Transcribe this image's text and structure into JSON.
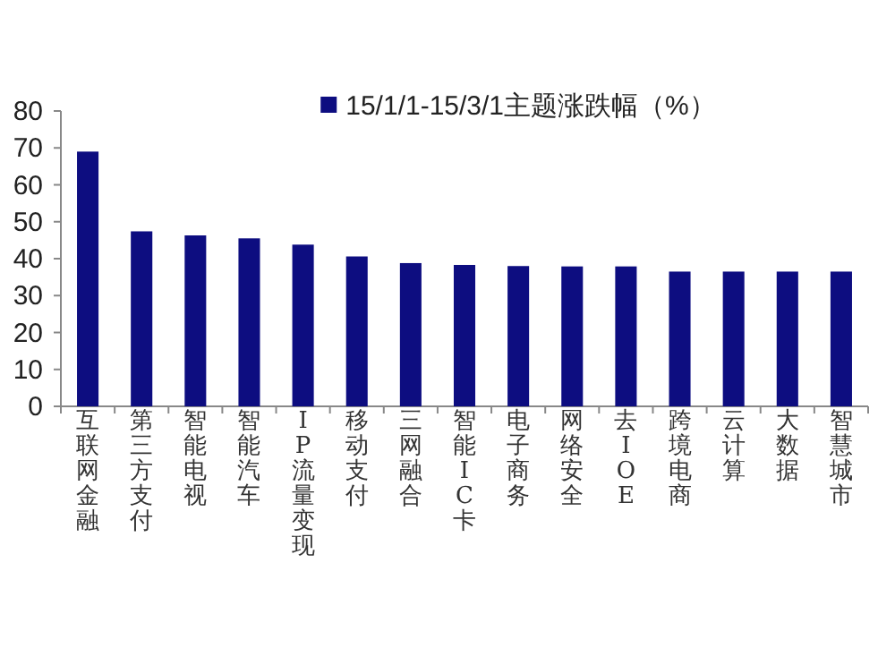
{
  "chart_data": {
    "type": "bar",
    "categories": [
      "互联网金融",
      "第三方支付",
      "智能电视",
      "智能汽车",
      "IP流量变现",
      "移动支付",
      "三网融合",
      "智能IC卡",
      "电子商务",
      "网络安全",
      "去IOE",
      "跨境电商",
      "云计算",
      "大数据",
      "智慧城市"
    ],
    "series": [
      {
        "name": "15/1/1-15/3/1主题涨跌幅（%）",
        "color": "#0d0d80",
        "values": [
          69,
          47.4,
          46.3,
          45.5,
          43.8,
          40.6,
          38.8,
          38.3,
          38,
          37.9,
          37.9,
          36.5,
          36.5,
          36.5,
          36.5
        ]
      }
    ],
    "ylim": [
      0,
      80
    ],
    "yticks": [
      0,
      10,
      20,
      30,
      40,
      50,
      60,
      70,
      80
    ],
    "grid": false,
    "legend": "top"
  }
}
